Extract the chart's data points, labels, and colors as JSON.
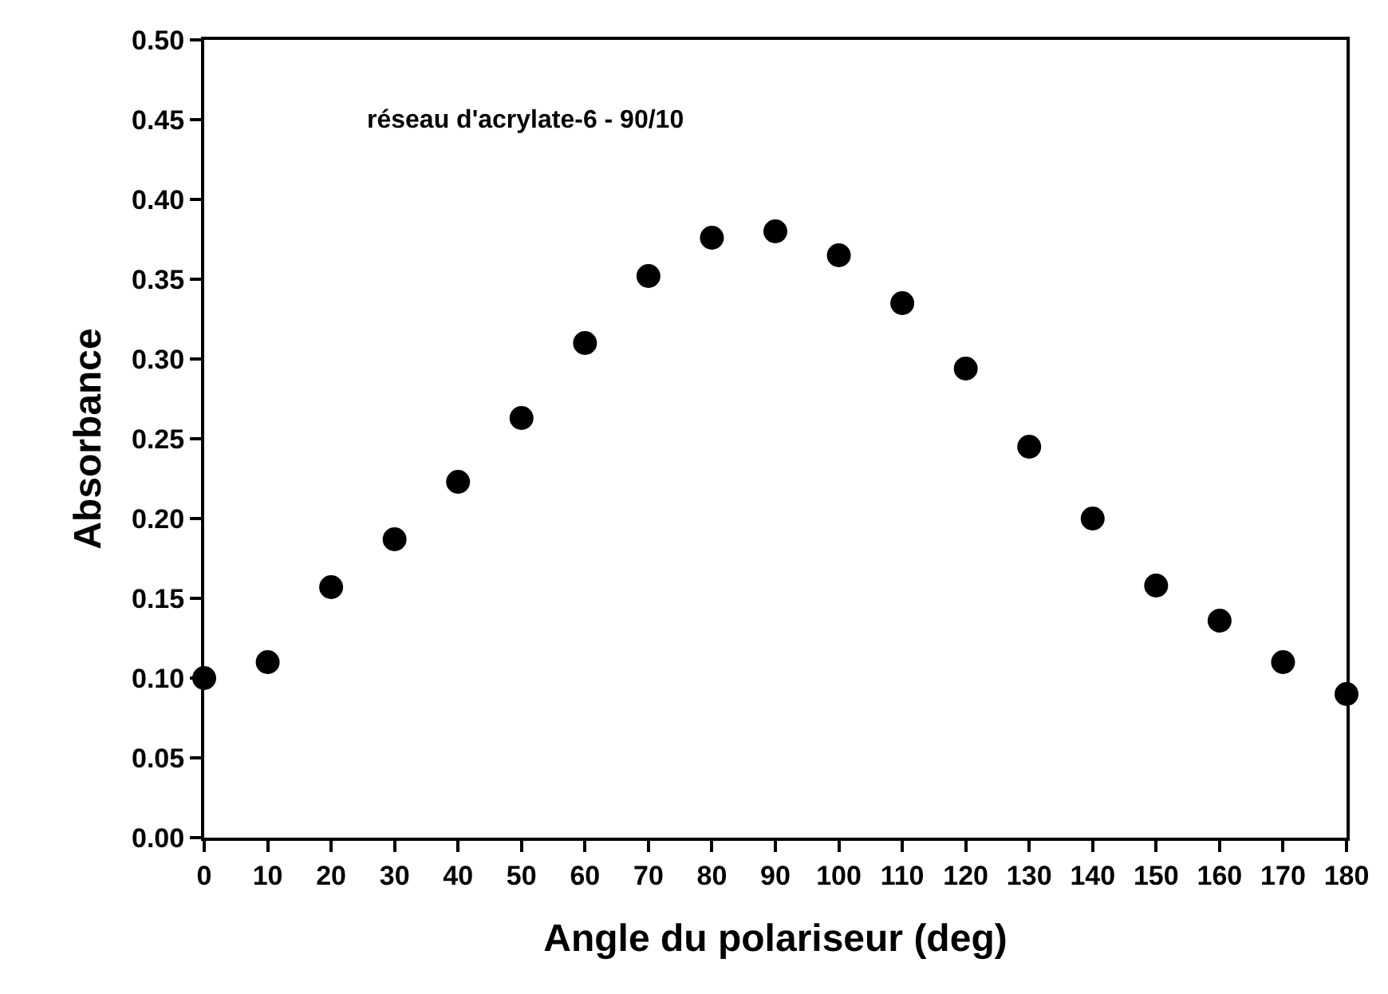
{
  "chart_data": {
    "type": "scatter",
    "xlabel": "Angle du polariseur (deg)",
    "ylabel": "Absorbance",
    "annotations": [
      "réseau d'acrylate-6 - 90/10"
    ],
    "x": [
      0,
      10,
      20,
      30,
      40,
      50,
      60,
      70,
      80,
      90,
      100,
      110,
      120,
      130,
      140,
      150,
      160,
      170,
      180
    ],
    "series": [
      {
        "color": "#000000",
        "values": [
          0.1,
          0.11,
          0.157,
          0.187,
          0.223,
          0.263,
          0.31,
          0.352,
          0.376,
          0.38,
          0.365,
          0.335,
          0.294,
          0.245,
          0.2,
          0.158,
          0.136,
          0.11,
          0.09
        ]
      }
    ],
    "xlim": [
      0,
      180
    ],
    "xticks": [
      0,
      10,
      20,
      30,
      40,
      50,
      60,
      70,
      80,
      90,
      100,
      110,
      120,
      130,
      140,
      150,
      160,
      170,
      180
    ],
    "ylim": [
      0,
      0.5
    ],
    "yticks": [
      {
        "value": 0,
        "label": "0.00"
      },
      {
        "value": 0.05,
        "label": "0.05"
      },
      {
        "value": 0.1,
        "label": "0.10"
      },
      {
        "value": 0.15,
        "label": "0.15"
      },
      {
        "value": 0.2,
        "label": "0.20"
      },
      {
        "value": 0.25,
        "label": "0.25"
      },
      {
        "value": 0.3,
        "label": "0.30"
      },
      {
        "value": 0.35,
        "label": "0.35"
      },
      {
        "value": 0.4,
        "label": "0.40"
      },
      {
        "value": 0.45,
        "label": "0.45"
      },
      {
        "value": 0.5,
        "label": "0.50"
      }
    ],
    "marker": "circle"
  }
}
